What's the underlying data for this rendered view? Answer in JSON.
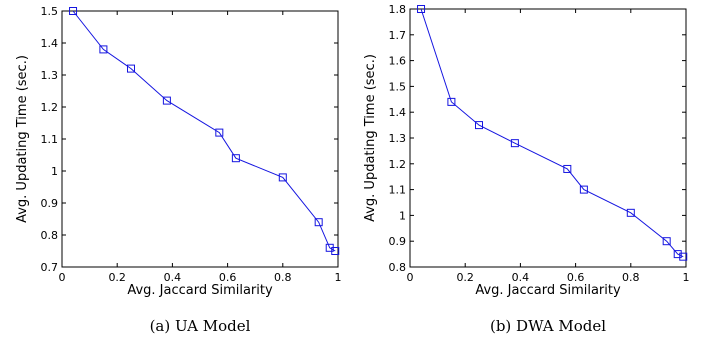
{
  "chart_data": [
    {
      "type": "line",
      "caption": "(a)  UA Model",
      "xlabel": "Avg. Jaccard Similarity",
      "ylabel": "Avg. Updating Time (sec.)",
      "xlim": [
        0,
        1
      ],
      "ylim": [
        0.7,
        1.5
      ],
      "x_ticks": [
        0,
        0.2,
        0.4,
        0.6,
        0.8,
        1
      ],
      "x_tick_labels": [
        "0",
        "0.2",
        "0.4",
        "0.6",
        "0.8",
        "1"
      ],
      "y_ticks": [
        0.7,
        0.8,
        0.9,
        1.0,
        1.1,
        1.2,
        1.3,
        1.4,
        1.5
      ],
      "y_tick_labels": [
        "0.7",
        "0.8",
        "0.9",
        "1",
        "1.1",
        "1.2",
        "1.3",
        "1.4",
        "1.5"
      ],
      "grid": false,
      "color": "#1515e0",
      "marker": "square",
      "series": [
        {
          "x": [
            0.04,
            0.15,
            0.25,
            0.38,
            0.57,
            0.63,
            0.8,
            0.93,
            0.97,
            0.99
          ],
          "y": [
            1.5,
            1.38,
            1.32,
            1.22,
            1.12,
            1.04,
            0.98,
            0.84,
            0.76,
            0.75
          ]
        }
      ]
    },
    {
      "type": "line",
      "caption": "(b)  DWA Model",
      "xlabel": "Avg. Jaccard Similarity",
      "ylabel": "Avg. Updating Time (sec.)",
      "xlim": [
        0,
        1
      ],
      "ylim": [
        0.8,
        1.8
      ],
      "x_ticks": [
        0,
        0.2,
        0.4,
        0.6,
        0.8,
        1
      ],
      "x_tick_labels": [
        "0",
        "0.2",
        "0.4",
        "0.6",
        "0.8",
        "1"
      ],
      "y_ticks": [
        0.8,
        0.9,
        1.0,
        1.1,
        1.2,
        1.3,
        1.4,
        1.5,
        1.6,
        1.7,
        1.8
      ],
      "y_tick_labels": [
        "0.8",
        "0.9",
        "1",
        "1.1",
        "1.2",
        "1.3",
        "1.4",
        "1.5",
        "1.6",
        "1.7",
        "1.8"
      ],
      "grid": false,
      "color": "#1515e0",
      "marker": "square",
      "series": [
        {
          "x": [
            0.04,
            0.15,
            0.25,
            0.38,
            0.57,
            0.63,
            0.8,
            0.93,
            0.97,
            0.99
          ],
          "y": [
            1.8,
            1.44,
            1.35,
            1.28,
            1.18,
            1.1,
            1.01,
            0.9,
            0.85,
            0.84
          ]
        }
      ]
    }
  ]
}
